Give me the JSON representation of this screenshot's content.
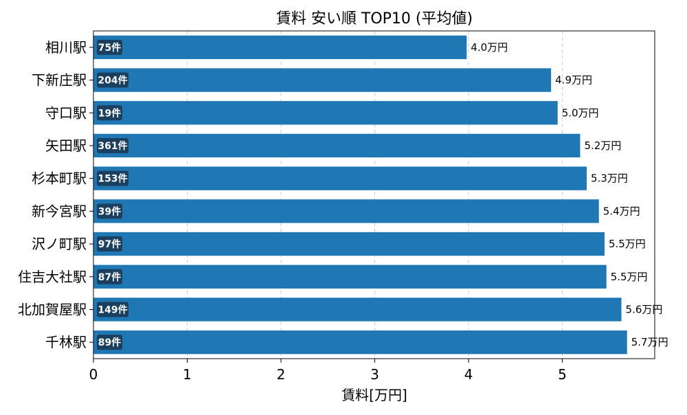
{
  "chart_data": {
    "type": "bar",
    "orientation": "horizontal",
    "title": "賃料 安い順 TOP10 (平均値)",
    "xlabel": "賃料[万円]",
    "ylabel": "",
    "xlim": [
      0,
      5.985
    ],
    "xticks": [
      0,
      1,
      2,
      3,
      4,
      5
    ],
    "grid": "x-dashed",
    "bar_color": "#1f77b4",
    "badge_color": "#1b3f5e",
    "categories": [
      "相川駅",
      "下新庄駅",
      "守口駅",
      "矢田駅",
      "杉本町駅",
      "新今宮駅",
      "沢ノ町駅",
      "住吉大社駅",
      "北加賀屋駅",
      "千林駅"
    ],
    "values": [
      3.98,
      4.88,
      4.95,
      5.19,
      5.26,
      5.39,
      5.45,
      5.47,
      5.63,
      5.69
    ],
    "value_labels": [
      "4.0万円",
      "4.9万円",
      "5.0万円",
      "5.2万円",
      "5.3万円",
      "5.4万円",
      "5.5万円",
      "5.5万円",
      "5.6万円",
      "5.7万円"
    ],
    "count_labels": [
      "75件",
      "204件",
      "19件",
      "361件",
      "153件",
      "39件",
      "97件",
      "87件",
      "149件",
      "89件"
    ]
  }
}
